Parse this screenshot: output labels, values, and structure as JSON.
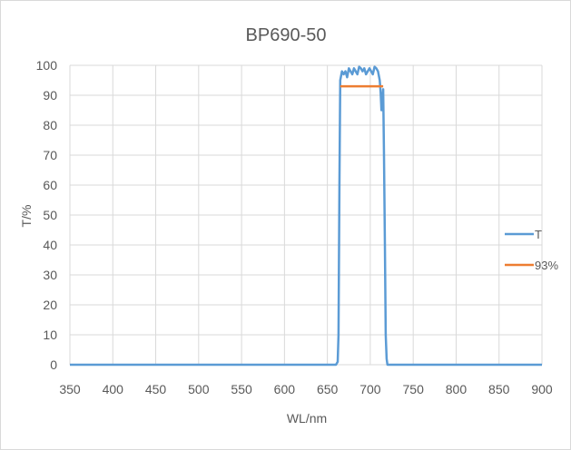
{
  "chart_data": {
    "type": "line",
    "title": "BP690-50",
    "xlabel": "WL/nm",
    "ylabel": "T/%",
    "xlim": [
      350,
      900
    ],
    "ylim": [
      0,
      100
    ],
    "x_ticks": [
      350,
      400,
      450,
      500,
      550,
      600,
      650,
      700,
      750,
      800,
      850,
      900
    ],
    "y_ticks": [
      0,
      10,
      20,
      30,
      40,
      50,
      60,
      70,
      80,
      90,
      100
    ],
    "grid": true,
    "legend_position": "right",
    "series": [
      {
        "name": "T",
        "color": "#5b9bd5",
        "x": [
          350,
          600,
          660,
          662,
          663,
          664,
          665,
          667,
          669,
          671,
          673,
          675,
          677,
          679,
          681,
          683,
          685,
          687,
          689,
          691,
          693,
          695,
          697,
          699,
          701,
          703,
          705,
          707,
          709,
          711,
          712,
          713,
          714,
          715,
          716,
          717,
          718,
          719,
          720,
          722,
          750,
          900
        ],
        "y": [
          0,
          0,
          0,
          1,
          10,
          60,
          95,
          98,
          97,
          98,
          96,
          99,
          98,
          97,
          99,
          98,
          97,
          99.5,
          99,
          98,
          99,
          97,
          98,
          99,
          98,
          97,
          99.5,
          99,
          98,
          95,
          91,
          85,
          88,
          92,
          70,
          40,
          10,
          2,
          0,
          0,
          0,
          0
        ]
      },
      {
        "name": "93%",
        "color": "#ed7d31",
        "x": [
          665,
          715
        ],
        "y": [
          93,
          93
        ]
      }
    ]
  }
}
